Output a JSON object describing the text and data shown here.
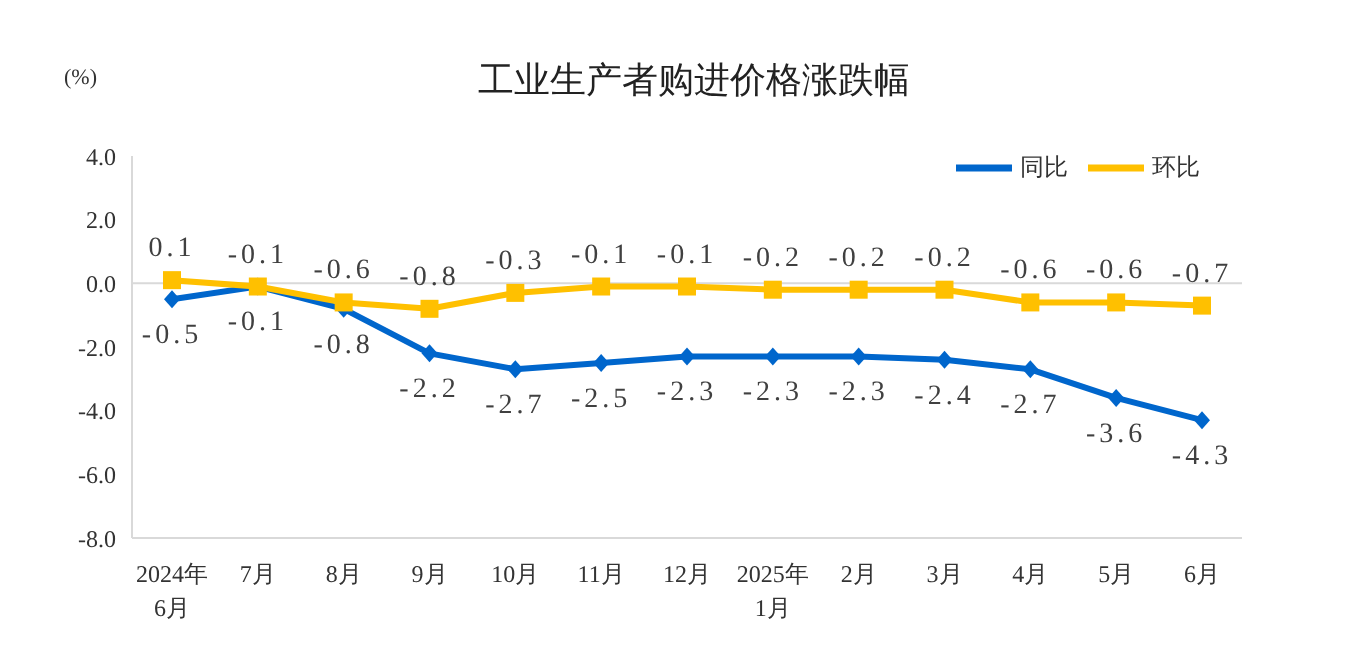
{
  "chart_data": {
    "type": "line",
    "title": "工业生产者购进价格涨跌幅",
    "ylabel": "(%)",
    "categories": [
      "2024年\n6月",
      "7月",
      "8月",
      "9月",
      "10月",
      "11月",
      "12月",
      "2025年\n1月",
      "2月",
      "3月",
      "4月",
      "5月",
      "6月"
    ],
    "series": [
      {
        "name": "同比",
        "color": "#0066cc",
        "marker": "diamond",
        "values": [
          -0.5,
          -0.1,
          -0.8,
          -2.2,
          -2.7,
          -2.5,
          -2.3,
          -2.3,
          -2.3,
          -2.4,
          -2.7,
          -3.6,
          -4.3
        ]
      },
      {
        "name": "环比",
        "color": "#ffc000",
        "marker": "square",
        "values": [
          0.1,
          -0.1,
          -0.6,
          -0.8,
          -0.3,
          -0.1,
          -0.1,
          -0.2,
          -0.2,
          -0.2,
          -0.6,
          -0.6,
          -0.7
        ]
      }
    ],
    "ylim": [
      -8,
      4
    ],
    "yticks": [
      {
        "value": -8,
        "label": "-8.0"
      },
      {
        "value": -6,
        "label": "-6.0"
      },
      {
        "value": -4,
        "label": "-4.0"
      },
      {
        "value": -2,
        "label": "-2.0"
      },
      {
        "value": 0,
        "label": "0.0"
      },
      {
        "value": 2,
        "label": "2.0"
      },
      {
        "value": 4,
        "label": "4.0"
      }
    ],
    "ref_lines": [
      {
        "axis": "y",
        "value": 0,
        "color": "#d9d9d9"
      }
    ],
    "data_labels": true,
    "grid": false,
    "legend": "top right"
  }
}
